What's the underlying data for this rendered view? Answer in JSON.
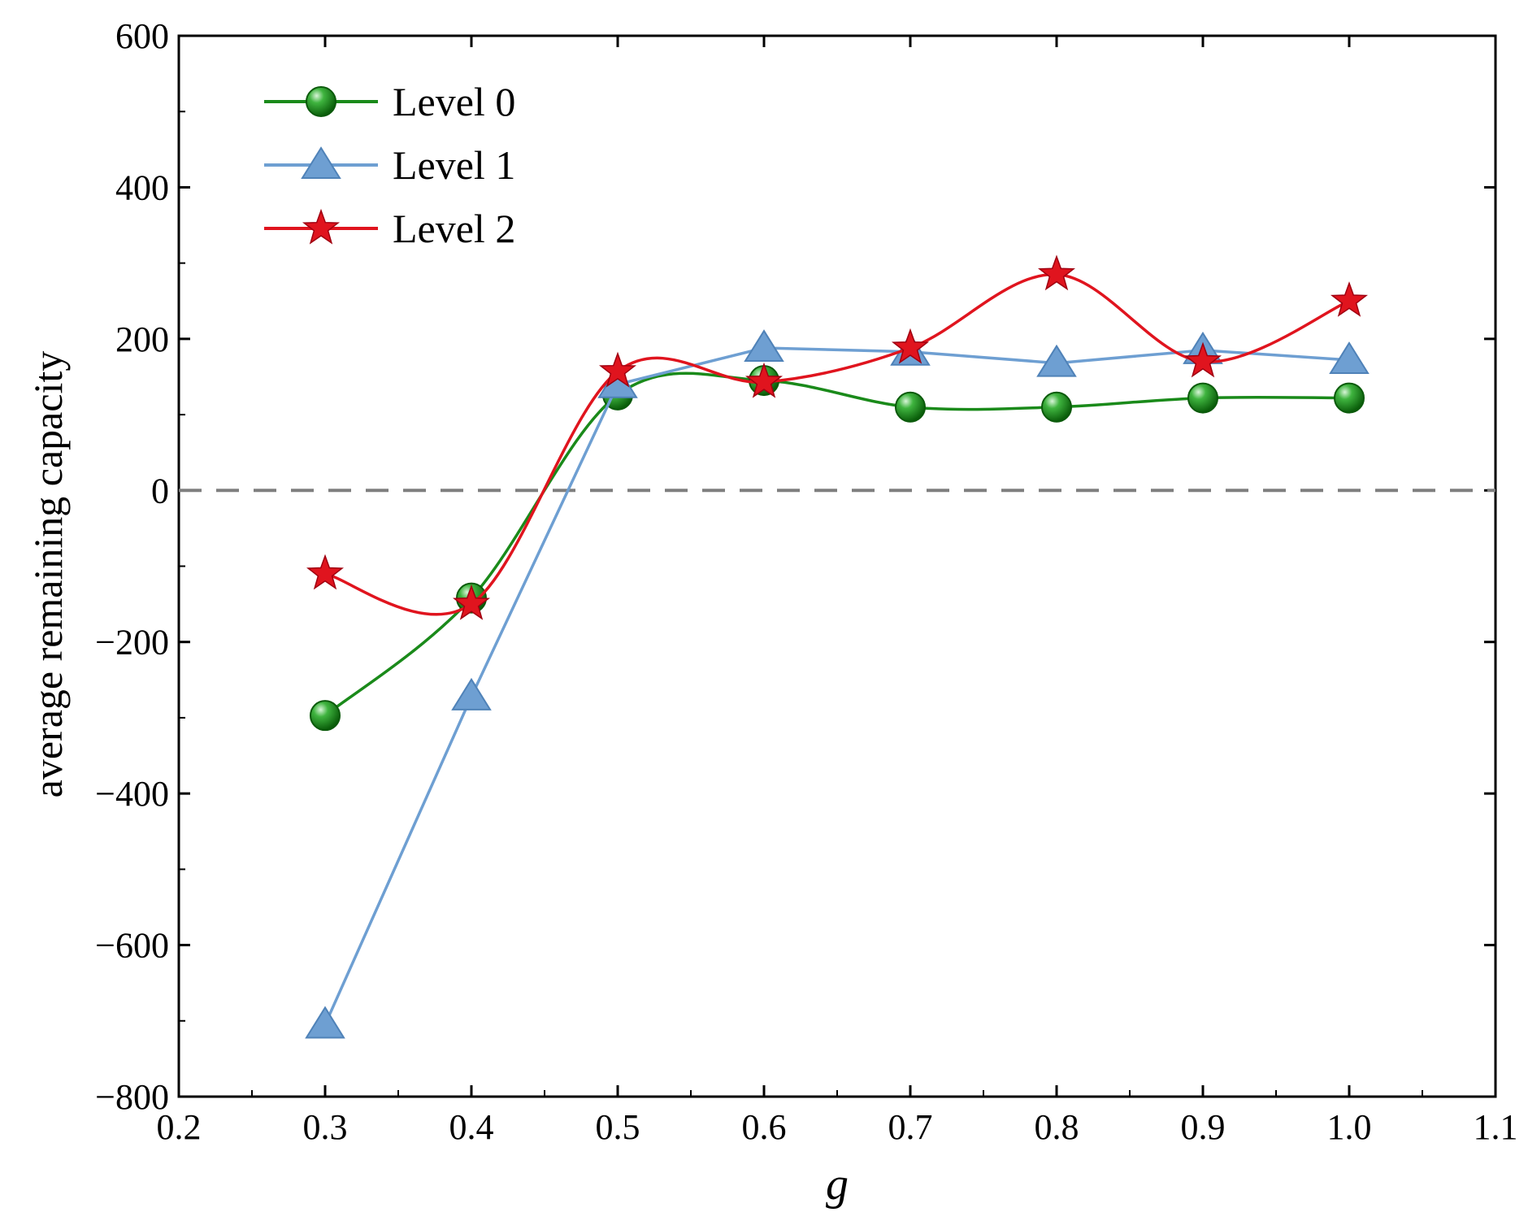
{
  "chart_data": {
    "type": "line",
    "title": "",
    "xlabel": "g",
    "ylabel": "average remaining capacity",
    "xlim": [
      0.2,
      1.1
    ],
    "ylim": [
      -800,
      600
    ],
    "xticks": [
      "0.2",
      "0.3",
      "0.4",
      "0.5",
      "0.6",
      "0.7",
      "0.8",
      "0.9",
      "1.0",
      "1.1"
    ],
    "yticks": [
      "600",
      "400",
      "200",
      "0",
      "−200",
      "−400",
      "−600",
      "−800"
    ],
    "grid": false,
    "legend_position": "top-left",
    "reference_line": {
      "y": 0,
      "style": "dashed",
      "color": "#7f7f7f"
    },
    "x": [
      0.3,
      0.4,
      0.5,
      0.6,
      0.7,
      0.8,
      0.9,
      1.0
    ],
    "series": [
      {
        "name": "Level 0",
        "marker": "circle",
        "color": "#1a8a1a",
        "values": [
          -297,
          -142,
          126,
          145,
          110,
          110,
          122,
          122
        ]
      },
      {
        "name": "Level 1",
        "marker": "triangle",
        "color": "#6e9fd2",
        "values": [
          -705,
          -272,
          140,
          188,
          183,
          168,
          185,
          172
        ]
      },
      {
        "name": "Level 2",
        "marker": "star",
        "color": "#e0141e",
        "values": [
          -110,
          -150,
          157,
          143,
          188,
          285,
          170,
          250
        ]
      }
    ]
  }
}
